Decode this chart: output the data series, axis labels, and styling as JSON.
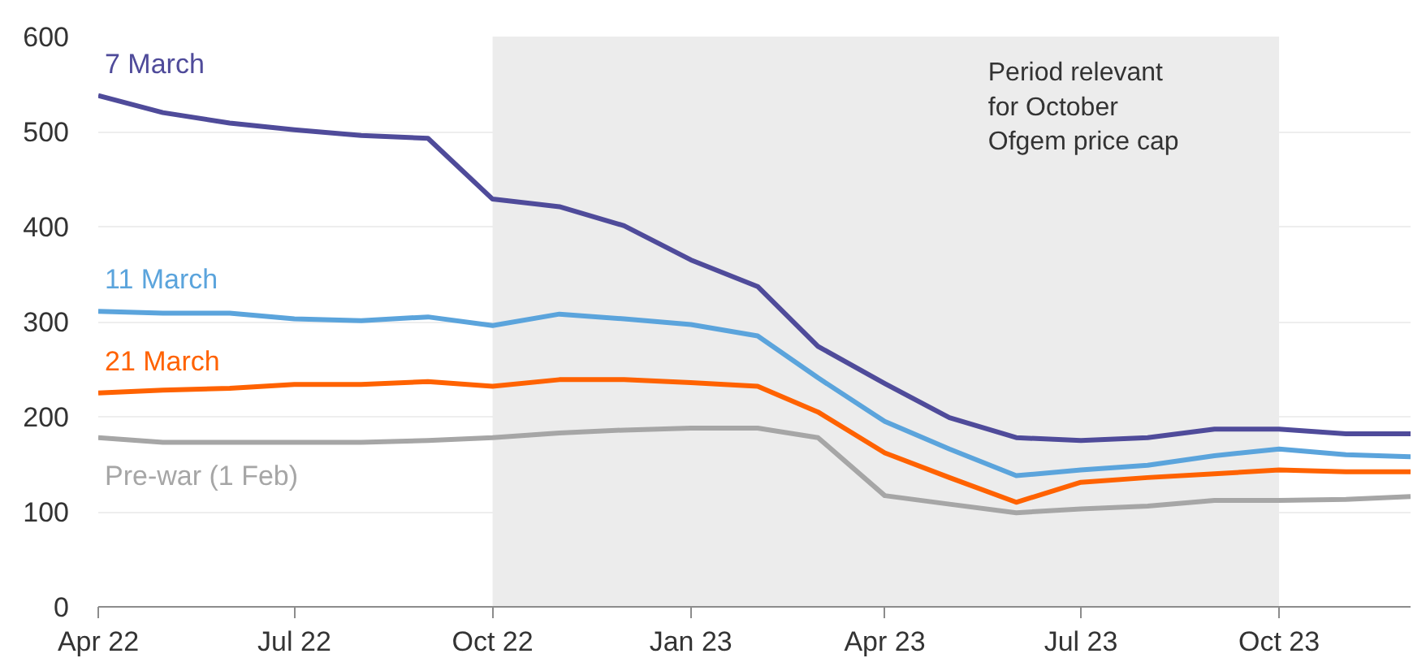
{
  "chart_data": {
    "type": "line",
    "x": [
      "2022-04",
      "2022-05",
      "2022-06",
      "2022-07",
      "2022-08",
      "2022-09",
      "2022-10",
      "2022-11",
      "2022-12",
      "2023-01",
      "2023-02",
      "2023-03",
      "2023-04",
      "2023-05",
      "2023-06",
      "2023-07",
      "2023-08",
      "2023-09",
      "2023-10",
      "2023-11",
      "2023-12"
    ],
    "xlim": [
      "2022-04",
      "2023-12"
    ],
    "xticks": [
      {
        "value": "2022-04",
        "label": "Apr 22"
      },
      {
        "value": "2022-07",
        "label": "Jul 22"
      },
      {
        "value": "2022-10",
        "label": "Oct 22"
      },
      {
        "value": "2023-01",
        "label": "Jan 23"
      },
      {
        "value": "2023-04",
        "label": "Apr 23"
      },
      {
        "value": "2023-07",
        "label": "Jul 23"
      },
      {
        "value": "2023-10",
        "label": "Oct 23"
      }
    ],
    "ylim": [
      0,
      600
    ],
    "yticks": [
      0,
      100,
      200,
      300,
      400,
      500,
      600
    ],
    "grid": "y",
    "line_style": "solid",
    "marker": "none",
    "series": [
      {
        "name": "7 March",
        "color": "#4f4b9a",
        "values": [
          538,
          520,
          509,
          502,
          496,
          493,
          429,
          421,
          401,
          365,
          337,
          274,
          235,
          199,
          178,
          175,
          178,
          187,
          187,
          182,
          182
        ]
      },
      {
        "name": "11 March",
        "color": "#5ba4dc",
        "values": [
          311,
          309,
          309,
          303,
          301,
          305,
          296,
          308,
          303,
          297,
          285,
          241,
          195,
          166,
          138,
          144,
          149,
          159,
          166,
          160,
          158
        ]
      },
      {
        "name": "21 March",
        "color": "#ff6200",
        "values": [
          225,
          228,
          230,
          234,
          234,
          237,
          232,
          239,
          239,
          236,
          232,
          205,
          162,
          136,
          110,
          131,
          136,
          140,
          144,
          142,
          142
        ]
      },
      {
        "name": "Pre-war (1 Feb)",
        "color": "#a6a6a6",
        "values": [
          178,
          173,
          173,
          173,
          173,
          175,
          178,
          183,
          186,
          188,
          188,
          178,
          117,
          108,
          99,
          103,
          106,
          112,
          112,
          113,
          116
        ]
      }
    ],
    "bands": [
      {
        "axis": "x",
        "from": "2022-10",
        "to": "2023-10",
        "label": "Period relevant\nfor October\nOfgem price cap",
        "color": "#ececec"
      }
    ]
  }
}
